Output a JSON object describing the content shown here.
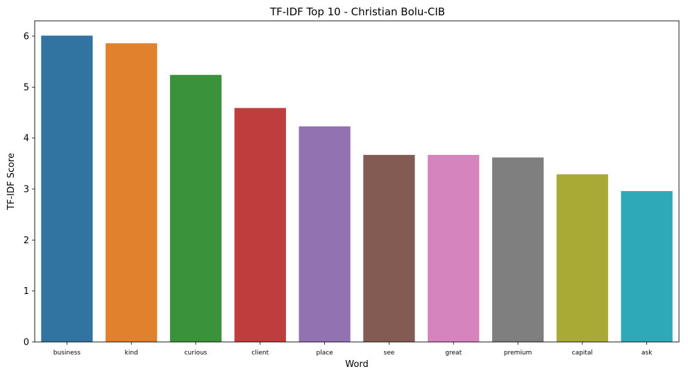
{
  "chart_data": {
    "type": "bar",
    "title": "TF-IDF Top 10 - Christian Bolu-CIB",
    "xlabel": "Word",
    "ylabel": "TF-IDF Score",
    "categories": [
      "business",
      "kind",
      "curious",
      "client",
      "place",
      "see",
      "great",
      "premium",
      "capital",
      "ask"
    ],
    "values": [
      6.01,
      5.86,
      5.24,
      4.59,
      4.23,
      3.67,
      3.67,
      3.62,
      3.29,
      2.96
    ],
    "colors": [
      "#3274a1",
      "#e1812c",
      "#3a923a",
      "#c03d3e",
      "#9372b2",
      "#845b53",
      "#d684bd",
      "#7f7f7f",
      "#a9aa35",
      "#2ea9b8"
    ],
    "ylim": [
      0,
      6.3
    ],
    "yticks": [
      0,
      1,
      2,
      3,
      4,
      5,
      6
    ],
    "grid": false,
    "legend": "none"
  }
}
